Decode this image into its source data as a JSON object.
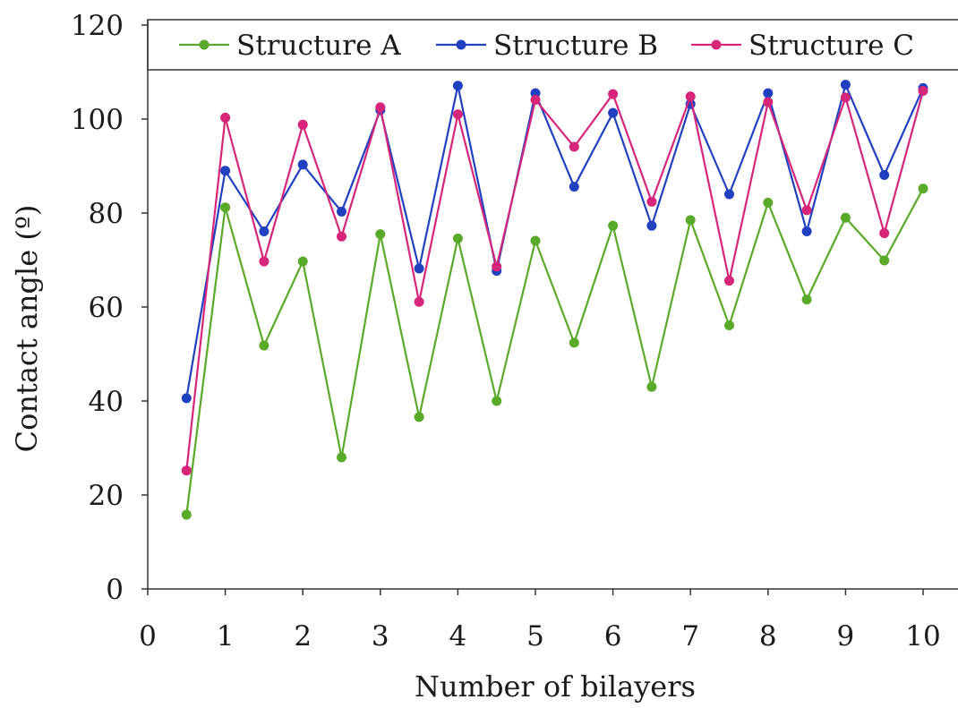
{
  "chart_data": {
    "type": "line",
    "title": "",
    "xlabel": "Number of bilayers",
    "ylabel": "Contact angle (º)",
    "xlim": [
      0,
      10.5
    ],
    "ylim": [
      0,
      120
    ],
    "x_ticks": [
      "0",
      "1",
      "2",
      "3",
      "4",
      "5",
      "6",
      "7",
      "8",
      "9",
      "10"
    ],
    "y_ticks": [
      "0",
      "20",
      "40",
      "60",
      "80",
      "100",
      "120"
    ],
    "grid": false,
    "legend_position": "top",
    "x": [
      0.5,
      1,
      1.5,
      2,
      2.5,
      3,
      3.5,
      4,
      4.5,
      5,
      5.5,
      6,
      6.5,
      7,
      7.5,
      8,
      8.5,
      9,
      9.5,
      10
    ],
    "series": [
      {
        "name": "Structure A",
        "color": "#5aaa2a",
        "values": [
          15.8,
          81.2,
          51.8,
          69.7,
          28,
          75.5,
          36.6,
          74.6,
          40,
          74.1,
          52.4,
          77.3,
          43,
          78.5,
          56.1,
          82.2,
          61.6,
          79,
          69.9,
          85.2
        ]
      },
      {
        "name": "Structure B",
        "color": "#2040c0",
        "values": [
          40.6,
          89,
          76.1,
          90.3,
          80.3,
          101.9,
          68.2,
          107.1,
          67.7,
          105.5,
          85.6,
          101.3,
          77.3,
          103.2,
          84,
          105.5,
          76.1,
          107.3,
          88.1,
          106.6
        ]
      },
      {
        "name": "Structure C",
        "color": "#d6257a",
        "values": [
          25.2,
          100.3,
          69.7,
          98.8,
          75,
          102.5,
          61.1,
          101,
          68.6,
          104.1,
          94.1,
          105.3,
          82.4,
          104.8,
          65.6,
          103.6,
          80.6,
          104.6,
          75.7,
          106
        ]
      }
    ]
  }
}
